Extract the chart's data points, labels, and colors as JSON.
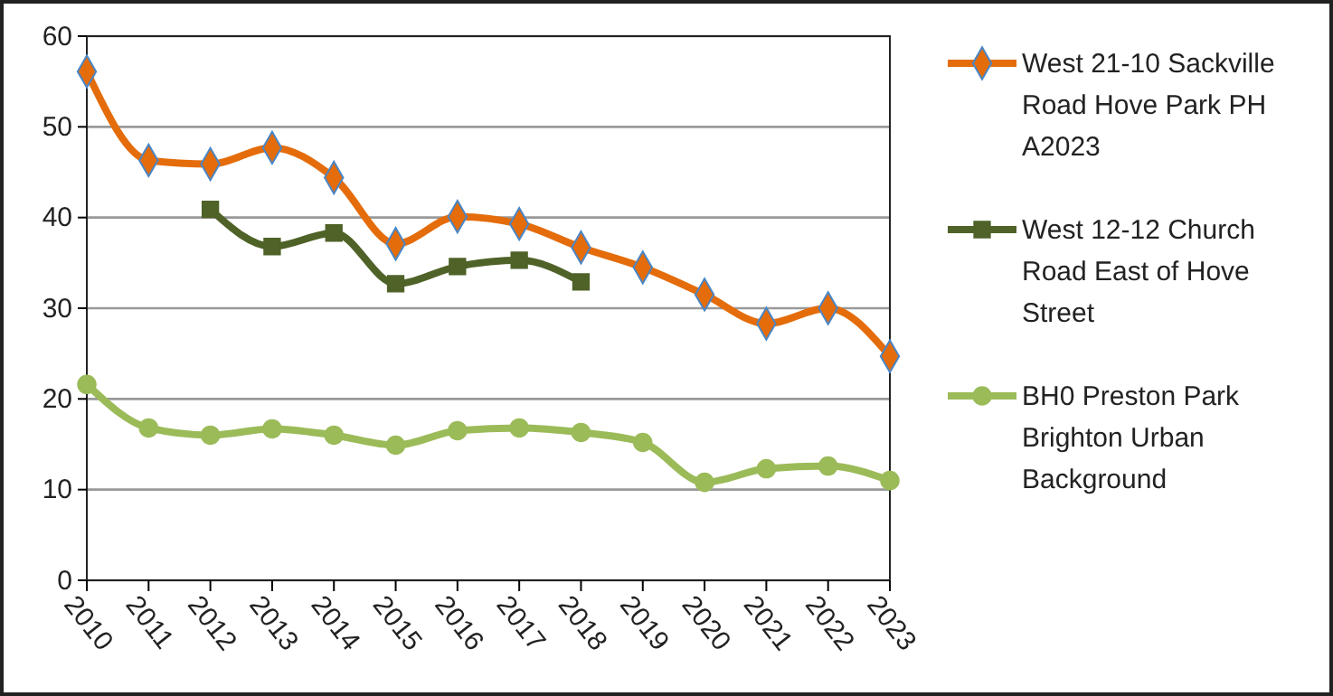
{
  "chart_data": {
    "type": "line",
    "categories": [
      "2010",
      "2011",
      "2012",
      "2013",
      "2014",
      "2015",
      "2016",
      "2017",
      "2018",
      "2019",
      "2020",
      "2021",
      "2022",
      "2023"
    ],
    "series": [
      {
        "name": "West 21-10 Sackville Road Hove Park PH A2023",
        "color": "#e46c0a",
        "marker": "diamond",
        "values": [
          56.1,
          46.3,
          45.9,
          47.7,
          44.4,
          37.1,
          40.1,
          39.3,
          36.7,
          34.5,
          31.5,
          28.3,
          30,
          24.7
        ]
      },
      {
        "name": "West 12-12 Church Road East of Hove Street",
        "color": "#4f6228",
        "marker": "square",
        "values": [
          null,
          null,
          40.9,
          36.8,
          38.3,
          32.7,
          34.6,
          35.3,
          32.9,
          null,
          null,
          null,
          null,
          null
        ]
      },
      {
        "name": "BH0 Preston Park Brighton Urban Background",
        "color": "#9bbb59",
        "marker": "circle",
        "values": [
          21.6,
          16.8,
          16,
          16.7,
          16,
          14.9,
          16.5,
          16.8,
          16.3,
          15.2,
          10.8,
          12.3,
          12.6,
          11
        ]
      }
    ],
    "ylim": [
      0,
      60
    ],
    "yticks": [
      0,
      10,
      20,
      30,
      40,
      50,
      60
    ],
    "grid": "y",
    "legend": "right"
  }
}
